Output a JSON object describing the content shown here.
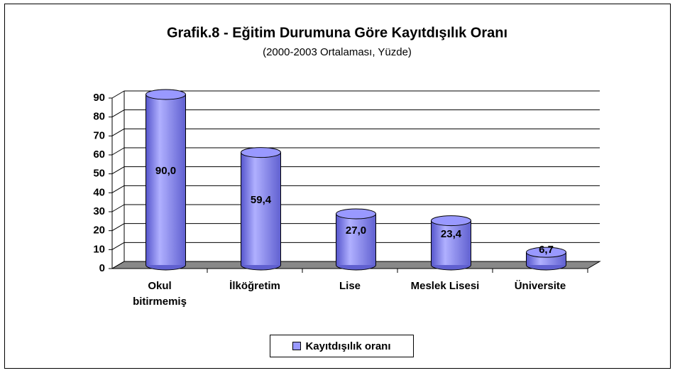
{
  "chart_data": {
    "type": "bar3d",
    "title": "Grafik.8 - Eğitim Durumuna Göre Kayıtdışılık Oranı",
    "subtitle": "(2000-2003 Ortalaması, Yüzde)",
    "categories": [
      "Okul bitirmemiş",
      "İlköğretim",
      "Lise",
      "Meslek Lisesi",
      "Üniversite"
    ],
    "series": [
      {
        "name": "Kayıtdışılık oranı",
        "color": "#9999ff",
        "values": [
          90.0,
          59.4,
          27.0,
          23.4,
          6.7
        ],
        "value_labels": [
          "90,0",
          "59,4",
          "27,0",
          "23,4",
          "6,7"
        ]
      }
    ],
    "ylim": [
      0,
      90
    ],
    "yticks": [
      0,
      10,
      20,
      30,
      40,
      50,
      60,
      70,
      80,
      90
    ],
    "grid": true,
    "legend": "bottom"
  }
}
